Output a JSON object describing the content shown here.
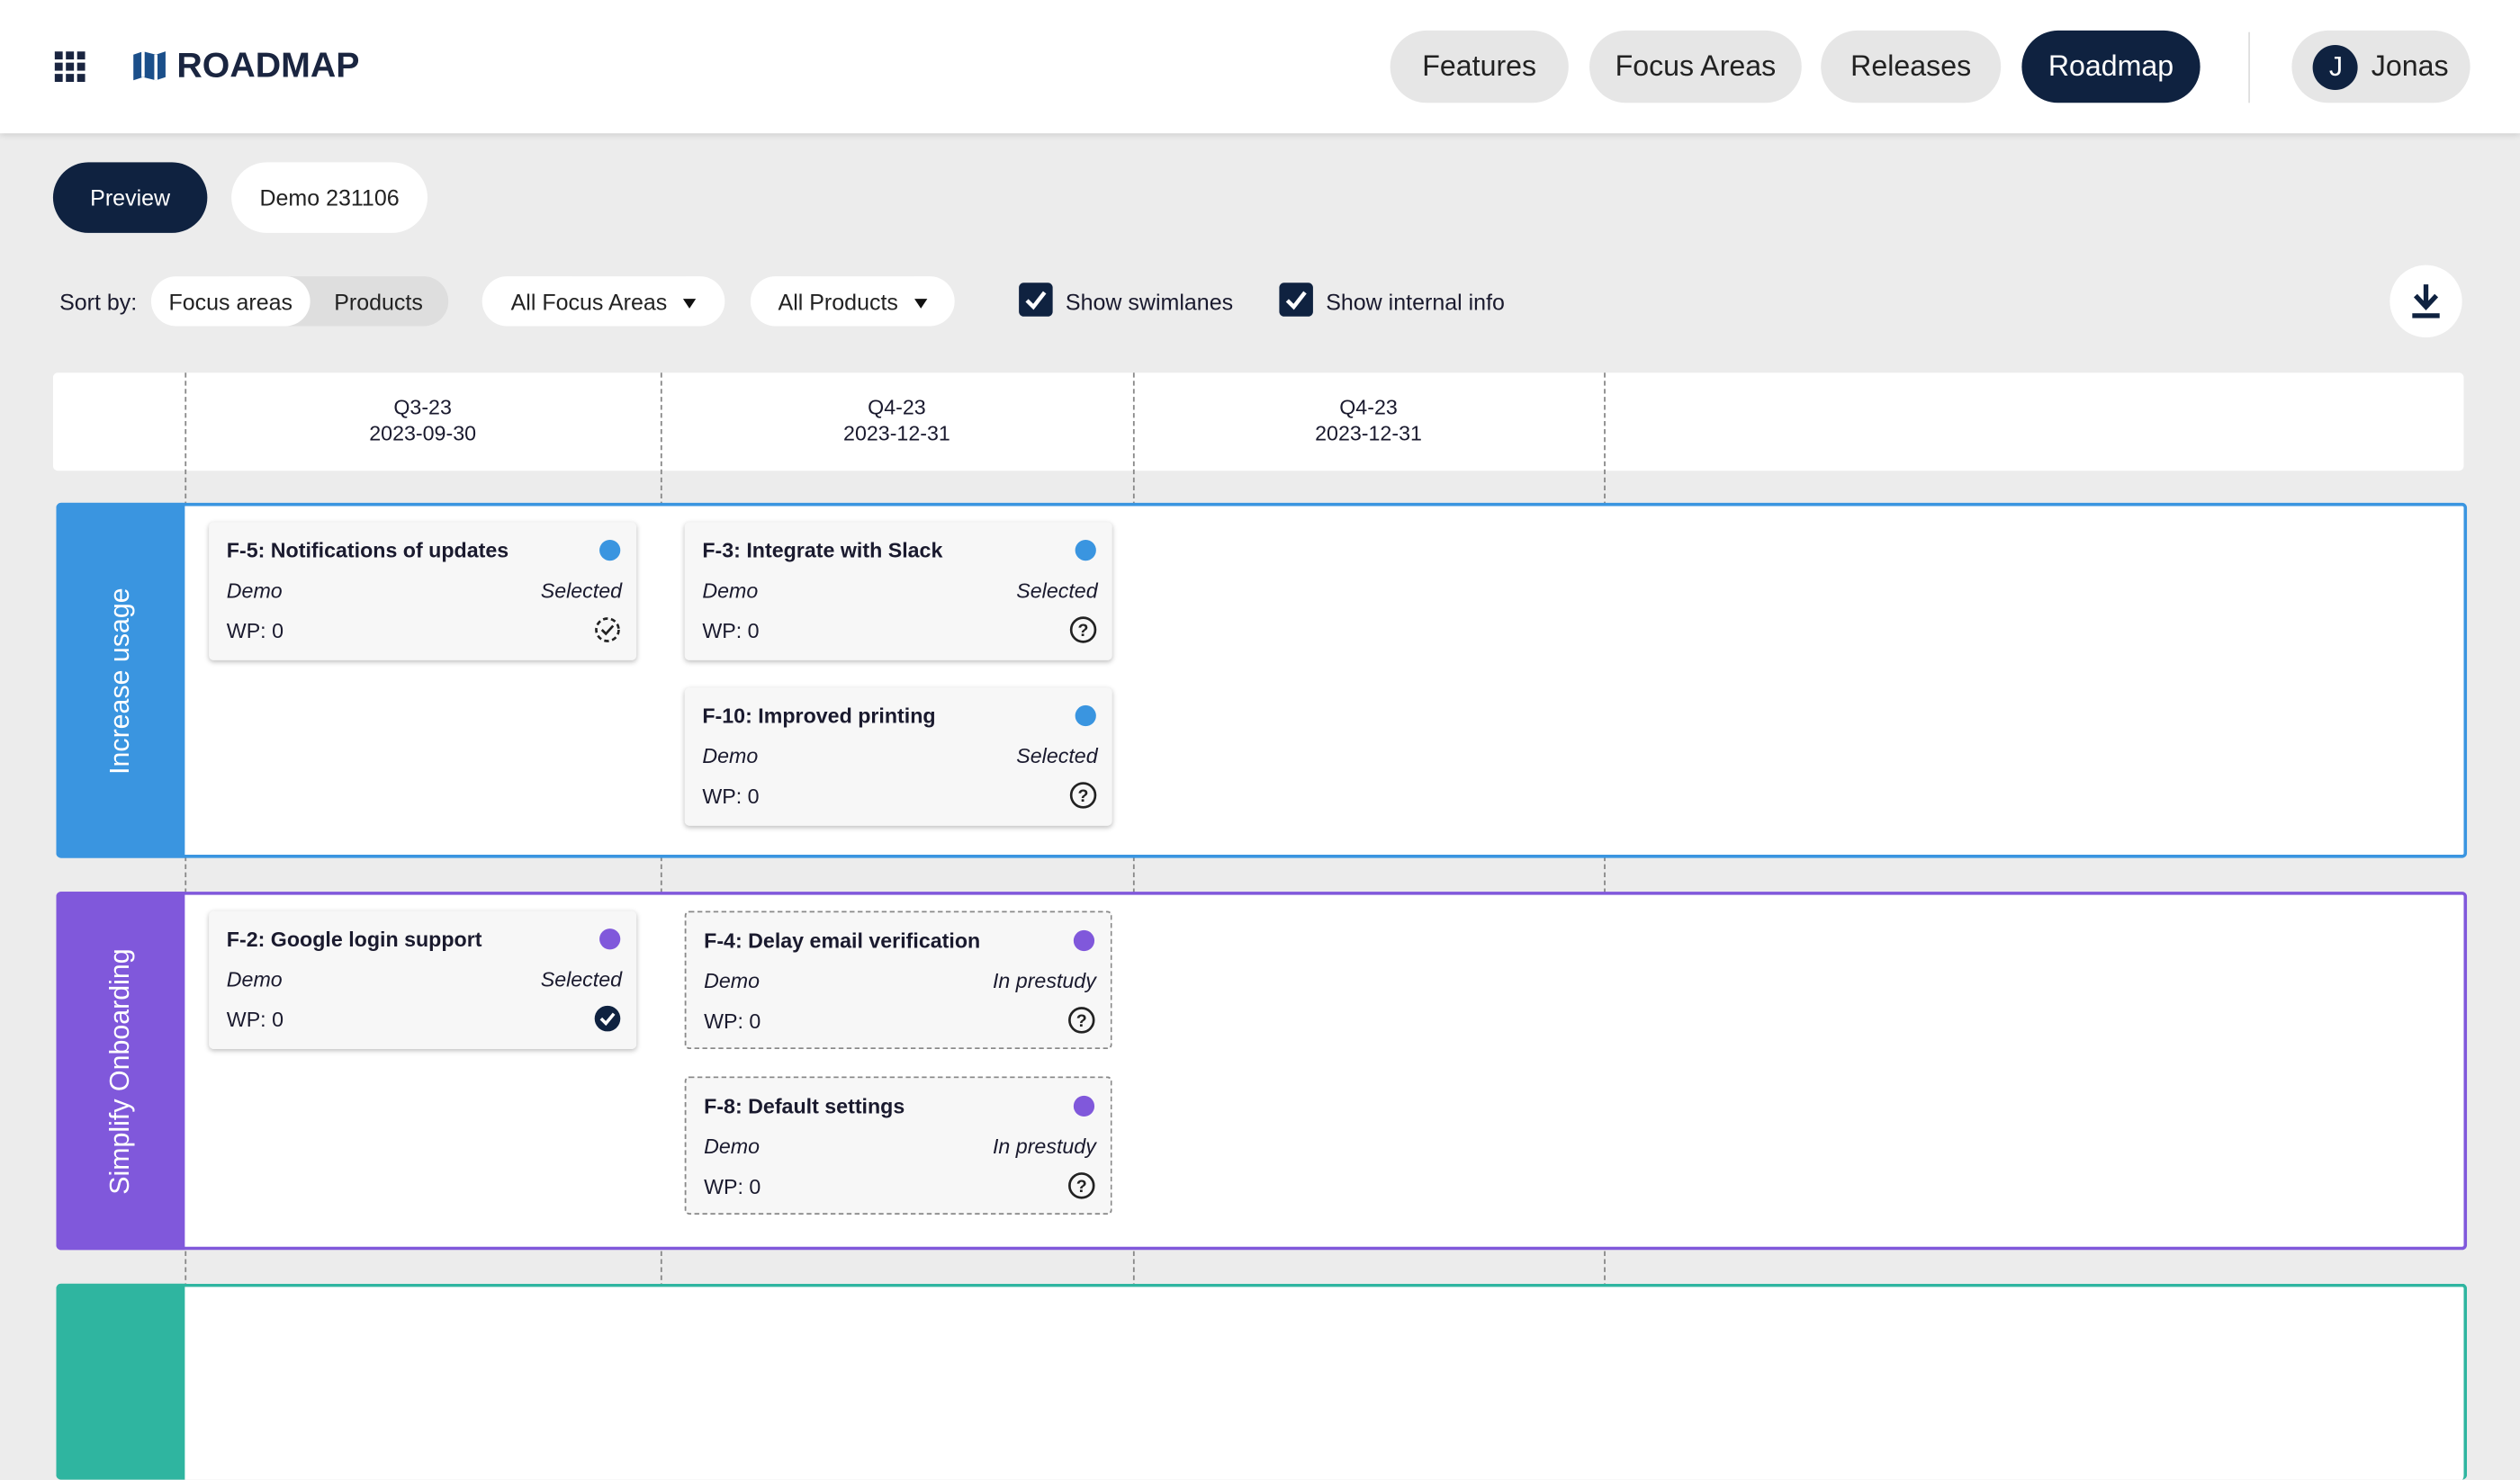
{
  "header": {
    "app_name": "ROADMAP",
    "nav": [
      "Features",
      "Focus Areas",
      "Releases",
      "Roadmap"
    ],
    "active_nav": 3,
    "user": {
      "initial": "J",
      "name": "Jonas"
    }
  },
  "tabs": {
    "items": [
      "Preview",
      "Demo 231106"
    ],
    "active": 0
  },
  "toolbar": {
    "sort_label": "Sort by:",
    "sort_options": [
      "Focus areas",
      "Products"
    ],
    "sort_active": 0,
    "filters": [
      "All Focus Areas",
      "All Products"
    ],
    "checkboxes": [
      {
        "label": "Show swimlanes",
        "checked": true
      },
      {
        "label": "Show internal info",
        "checked": true
      }
    ]
  },
  "timeline": {
    "columns": [
      {
        "quarter": "Q3-23",
        "date": "2023-09-30"
      },
      {
        "quarter": "Q4-23",
        "date": "2023-12-31"
      },
      {
        "quarter": "Q4-23",
        "date": "2023-12-31"
      }
    ]
  },
  "swimlanes": [
    {
      "name": "Increase usage",
      "color": "#3a95e0",
      "columns": [
        [
          {
            "title": "F-5: Notifications of updates",
            "product": "Demo",
            "status": "Selected",
            "wp": "WP: 0",
            "icon": "check-dashed",
            "dashed": false
          }
        ],
        [
          {
            "title": "F-3: Integrate with Slack",
            "product": "Demo",
            "status": "Selected",
            "wp": "WP: 0",
            "icon": "help",
            "dashed": false
          },
          {
            "title": "F-10: Improved printing",
            "product": "Demo",
            "status": "Selected",
            "wp": "WP: 0",
            "icon": "help",
            "dashed": false
          }
        ]
      ]
    },
    {
      "name": "Simplify Onboarding",
      "color": "#8058db",
      "columns": [
        [
          {
            "title": "F-2: Google login support",
            "product": "Demo",
            "status": "Selected",
            "wp": "WP: 0",
            "icon": "check",
            "dashed": false
          }
        ],
        [
          {
            "title": "F-4: Delay email verification",
            "product": "Demo",
            "status": "In prestudy",
            "wp": "WP: 0",
            "icon": "help",
            "dashed": true
          },
          {
            "title": "F-8: Default settings",
            "product": "Demo",
            "status": "In prestudy",
            "wp": "WP: 0",
            "icon": "help",
            "dashed": true
          }
        ]
      ]
    },
    {
      "color": "#2fb5a0",
      "columns": []
    }
  ]
}
